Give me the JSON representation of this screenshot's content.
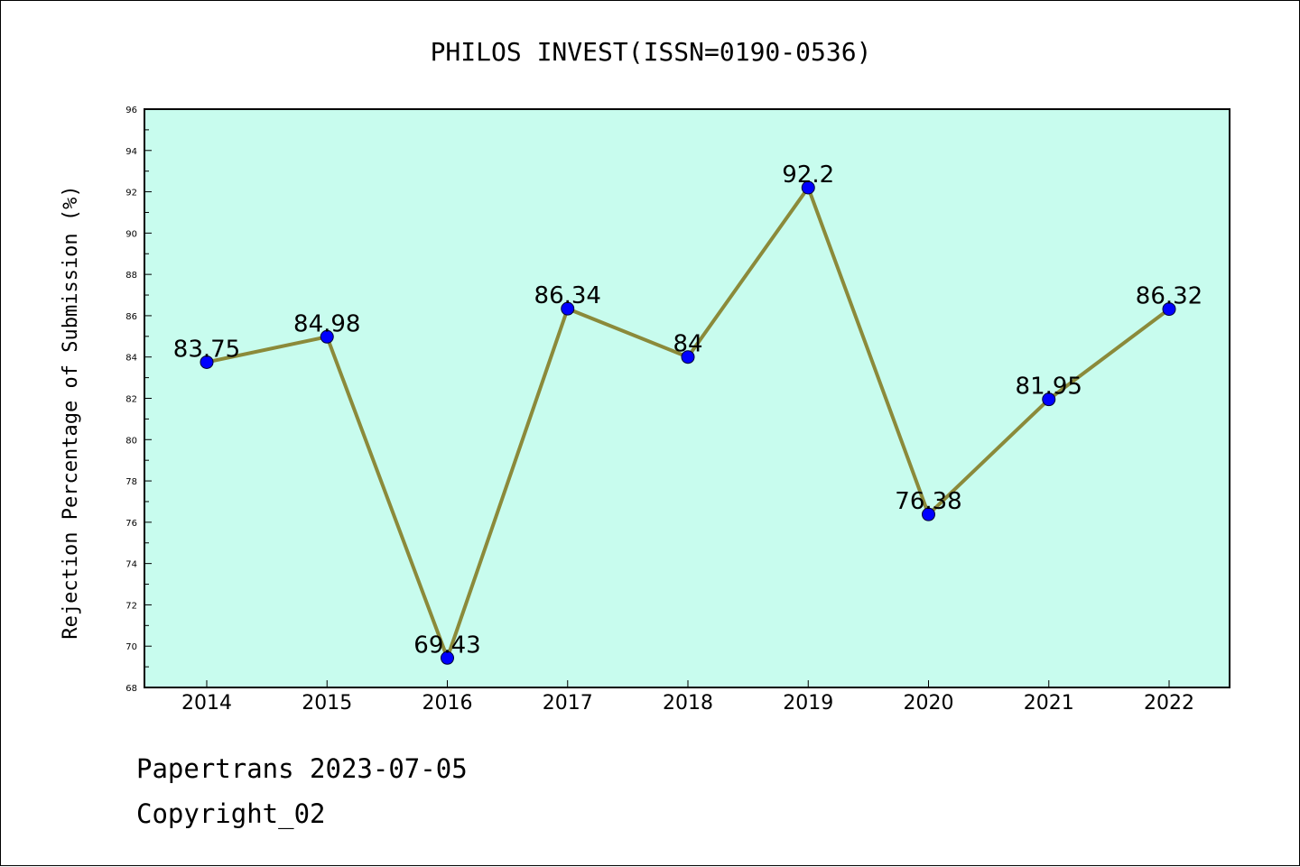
{
  "chart_data": {
    "type": "line",
    "title": "PHILOS INVEST(ISSN=0190-0536)",
    "xlabel": "",
    "ylabel": "Rejection Percentage of Submission (%)",
    "categories": [
      "2014",
      "2015",
      "2016",
      "2017",
      "2018",
      "2019",
      "2020",
      "2021",
      "2022"
    ],
    "values": [
      83.75,
      84.98,
      69.43,
      86.34,
      84,
      92.2,
      76.38,
      81.95,
      86.32
    ],
    "data_labels": [
      "83.75",
      "84.98",
      "69.43",
      "86.34",
      "84",
      "92.2",
      "76.38",
      "81.95",
      "86.32"
    ],
    "ylim": [
      68,
      96
    ],
    "yticks": [
      "68",
      "70",
      "72",
      "74",
      "76",
      "78",
      "80",
      "82",
      "84",
      "86",
      "88",
      "90",
      "92",
      "94",
      "96"
    ],
    "grid": false,
    "legend": "none",
    "colors": {
      "plot_background": "#c8fcee",
      "line": "#8b8a3a",
      "marker": "#0000ff",
      "axes": "#000000"
    }
  },
  "footer": {
    "line1": "Papertrans 2023-07-05",
    "line2": "Copyright_02"
  }
}
